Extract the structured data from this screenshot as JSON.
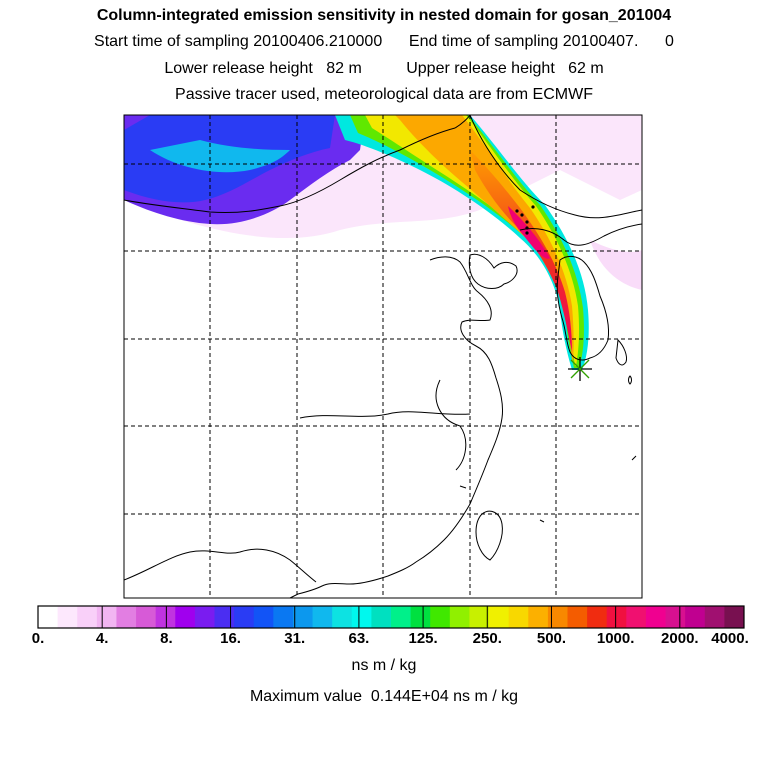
{
  "header": {
    "title": "Column-integrated emission sensitivity in nested domain for gosan_201004",
    "line2": "Start time of sampling 20100406.210000      End time of sampling 20100407.      0",
    "line3": "Lower release height   82 m          Upper release height   62 m",
    "line4": "Passive tracer used, meteorological data are from ECMWF"
  },
  "colorbar": {
    "labels": [
      "0.",
      "4.",
      "8.",
      "16.",
      "31.",
      "63.",
      "125.",
      "250.",
      "500.",
      "1000.",
      "2000.",
      "4000."
    ],
    "colors": [
      "#ffffff",
      "#fde8fd",
      "#f9d0f9",
      "#f2b5f2",
      "#e27ee2",
      "#d75ad7",
      "#c033e0",
      "#a000ee",
      "#7a1cf0",
      "#4b2ef2",
      "#2a3cf4",
      "#1254f6",
      "#0a78f2",
      "#0c98ee",
      "#10b8ee",
      "#0de2e2",
      "#00f8ee",
      "#00e0c0",
      "#00f08a",
      "#00e040",
      "#40e800",
      "#90f000",
      "#c8f000",
      "#f0f000",
      "#f8d800",
      "#fcb000",
      "#f88800",
      "#f45c00",
      "#f02c10",
      "#f01040",
      "#f01070",
      "#f00090",
      "#d81090",
      "#c00090",
      "#a01070",
      "#781050"
    ],
    "units": "ns m / kg"
  },
  "footer": {
    "max_value": "Maximum value  0.144E+04 ns m / kg"
  }
}
